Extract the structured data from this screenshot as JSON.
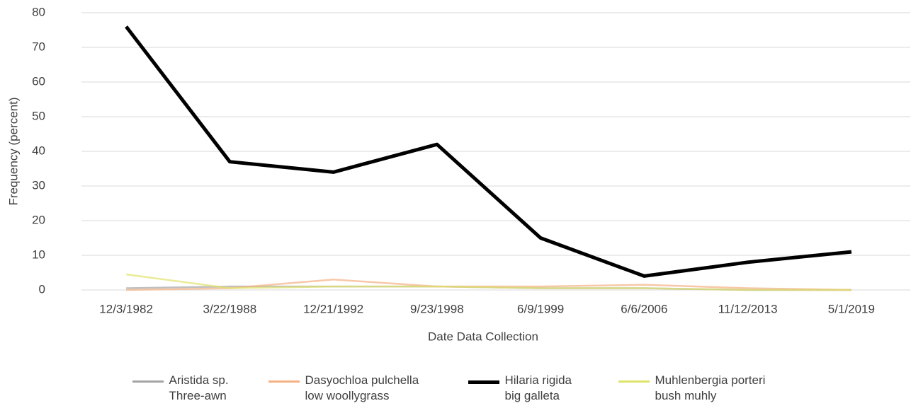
{
  "chart_data": {
    "type": "line",
    "x_label": "Date Data Collection",
    "y_label": "Frequency (percent)",
    "categories": [
      "12/3/1982",
      "3/22/1988",
      "12/21/1992",
      "9/23/1998",
      "6/9/1999",
      "6/6/2006",
      "11/12/2013",
      "5/1/2019"
    ],
    "series": [
      {
        "name": "Aristida sp. Three-awn",
        "color": "#a5a5a5",
        "values": [
          0.5,
          1,
          1,
          1,
          0.5,
          0.5,
          0,
          0
        ]
      },
      {
        "name": "Dasyochloa pulchella low woollygrass",
        "color": "#f4b183",
        "values": [
          0,
          0.5,
          3,
          1,
          1,
          1.5,
          0.5,
          0
        ]
      },
      {
        "name": "Hilaria rigida big galleta",
        "color": "#000000",
        "values": [
          76,
          37,
          34,
          42,
          15,
          4,
          8,
          11
        ]
      },
      {
        "name": "Muhlenbergia porteri bush muhly",
        "color": "#dfe36a",
        "values": [
          4.5,
          0.5,
          1,
          1,
          0.5,
          0.5,
          0,
          0
        ]
      }
    ],
    "ylim": [
      0,
      80
    ],
    "yticks": [
      0,
      10,
      20,
      30,
      40,
      50,
      60,
      70,
      80
    ],
    "grid": true,
    "legend": "bottom"
  }
}
